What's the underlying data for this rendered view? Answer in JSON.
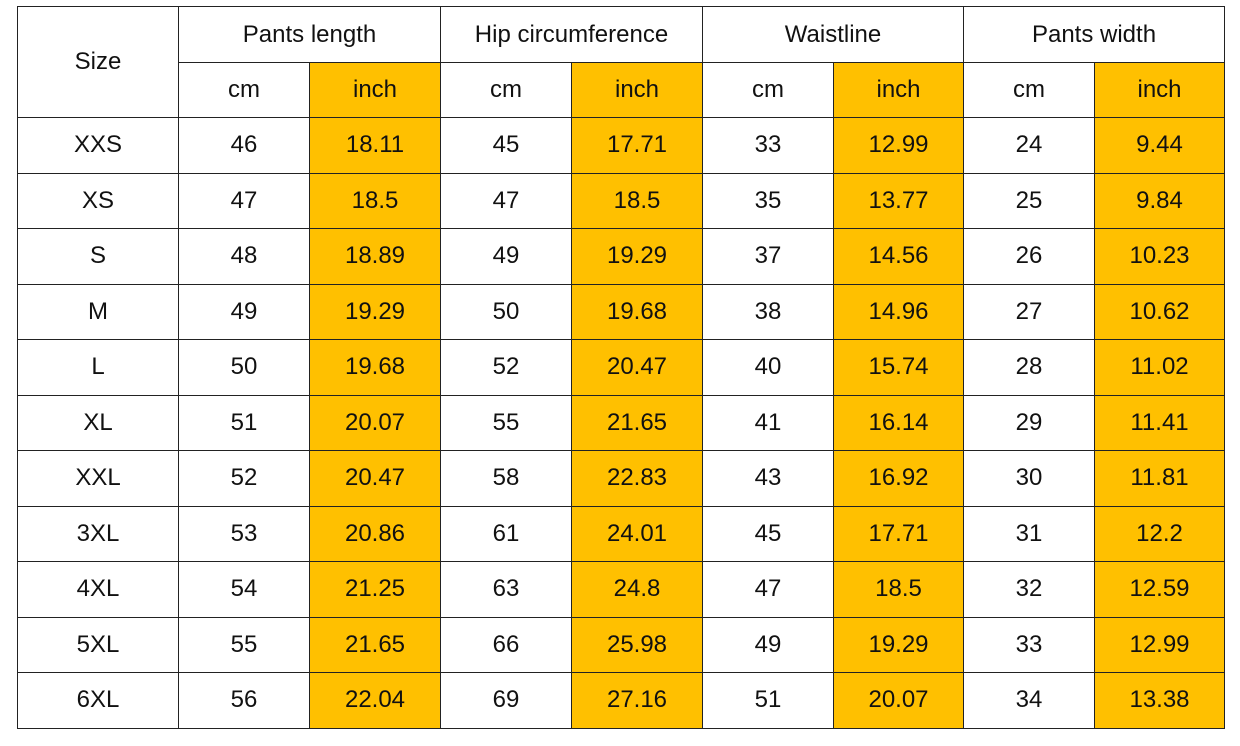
{
  "table": {
    "size_header": "Size",
    "groups": [
      "Pants length",
      "Hip circumference",
      "Waistline",
      "Pants width"
    ],
    "units": [
      "cm",
      "inch",
      "cm",
      "inch",
      "cm",
      "inch",
      "cm",
      "inch"
    ],
    "rows": [
      [
        "XXS",
        "46",
        "18.11",
        "45",
        "17.71",
        "33",
        "12.99",
        "24",
        "9.44"
      ],
      [
        "XS",
        "47",
        "18.5",
        "47",
        "18.5",
        "35",
        "13.77",
        "25",
        "9.84"
      ],
      [
        "S",
        "48",
        "18.89",
        "49",
        "19.29",
        "37",
        "14.56",
        "26",
        "10.23"
      ],
      [
        "M",
        "49",
        "19.29",
        "50",
        "19.68",
        "38",
        "14.96",
        "27",
        "10.62"
      ],
      [
        "L",
        "50",
        "19.68",
        "52",
        "20.47",
        "40",
        "15.74",
        "28",
        "11.02"
      ],
      [
        "XL",
        "51",
        "20.07",
        "55",
        "21.65",
        "41",
        "16.14",
        "29",
        "11.41"
      ],
      [
        "XXL",
        "52",
        "20.47",
        "58",
        "22.83",
        "43",
        "16.92",
        "30",
        "11.81"
      ],
      [
        "3XL",
        "53",
        "20.86",
        "61",
        "24.01",
        "45",
        "17.71",
        "31",
        "12.2"
      ],
      [
        "4XL",
        "54",
        "21.25",
        "63",
        "24.8",
        "47",
        "18.5",
        "32",
        "12.59"
      ],
      [
        "5XL",
        "55",
        "21.65",
        "66",
        "25.98",
        "49",
        "19.29",
        "33",
        "12.99"
      ],
      [
        "6XL",
        "56",
        "22.04",
        "69",
        "27.16",
        "51",
        "20.07",
        "34",
        "13.38"
      ]
    ]
  }
}
